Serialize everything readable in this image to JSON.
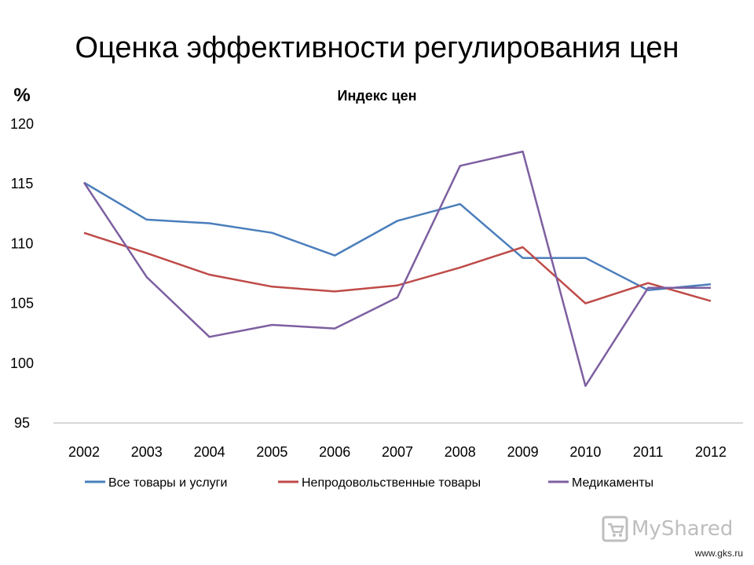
{
  "slide": {
    "title": "Оценка эффективности регулирования цен",
    "source": "www.gks.ru",
    "watermark": "MyShared"
  },
  "chart_data": {
    "type": "line",
    "title": "Индекс цен",
    "ylabel": "%",
    "xlabel": "",
    "categories": [
      "2002",
      "2003",
      "2004",
      "2005",
      "2006",
      "2007",
      "2008",
      "2009",
      "2010",
      "2011",
      "2012"
    ],
    "ylim": [
      95,
      120
    ],
    "yticks": [
      95,
      100,
      105,
      110,
      115,
      120
    ],
    "grid": false,
    "legend_position": "bottom",
    "series": [
      {
        "name": "Все товары и услуги",
        "color": "#4a7ebb",
        "values": [
          115.1,
          112.0,
          111.7,
          110.9,
          109.0,
          111.9,
          113.3,
          108.8,
          108.8,
          106.1,
          106.6
        ]
      },
      {
        "name": "Непродовольственные товары",
        "color": "#be4b48",
        "values": [
          110.9,
          109.2,
          107.4,
          106.4,
          106.0,
          106.5,
          108.0,
          109.7,
          105.0,
          106.7,
          105.2
        ]
      },
      {
        "name": "Медикаменты",
        "color": "#7d5fa0",
        "values": [
          115.1,
          107.2,
          102.2,
          103.2,
          102.9,
          105.5,
          116.5,
          117.7,
          98.1,
          106.3,
          106.3
        ]
      }
    ]
  }
}
